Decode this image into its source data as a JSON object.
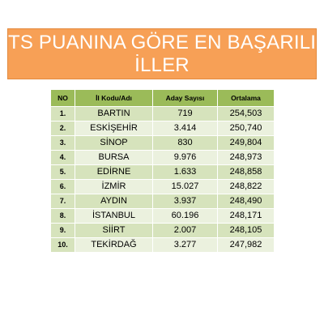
{
  "title": {
    "line1": "TS PUANINA GÖRE EN BAŞARILI",
    "line2": "İLLER"
  },
  "table": {
    "headers": [
      "NO",
      "İl Kodu/Adı",
      "Aday Sayısı",
      "Ortalama"
    ],
    "rows": [
      {
        "no": "1.",
        "province": "BARTIN",
        "candidates": "719",
        "average": "254,503"
      },
      {
        "no": "2.",
        "province": "ESKİŞEHİR",
        "candidates": "3.414",
        "average": "250,740"
      },
      {
        "no": "3.",
        "province": "SİNOP",
        "candidates": "830",
        "average": "249,804"
      },
      {
        "no": "4.",
        "province": "BURSA",
        "candidates": "9.976",
        "average": "248,973"
      },
      {
        "no": "5.",
        "province": "EDİRNE",
        "candidates": "1.633",
        "average": "248,858"
      },
      {
        "no": "6.",
        "province": "İZMİR",
        "candidates": "15.027",
        "average": "248,822"
      },
      {
        "no": "7.",
        "province": "AYDIN",
        "candidates": "3.937",
        "average": "248,490"
      },
      {
        "no": "8.",
        "province": "İSTANBUL",
        "candidates": "60.196",
        "average": "248,171"
      },
      {
        "no": "9.",
        "province": "SİİRT",
        "candidates": "2.007",
        "average": "248,105"
      },
      {
        "no": "10.",
        "province": "TEKİRDAĞ",
        "candidates": "3.277",
        "average": "247,982"
      }
    ]
  },
  "colors": {
    "title_bg": "#f7a056",
    "header_bg": "#9bbb59",
    "row_dark": "#d6e3bc",
    "row_light": "#ebf1de"
  }
}
